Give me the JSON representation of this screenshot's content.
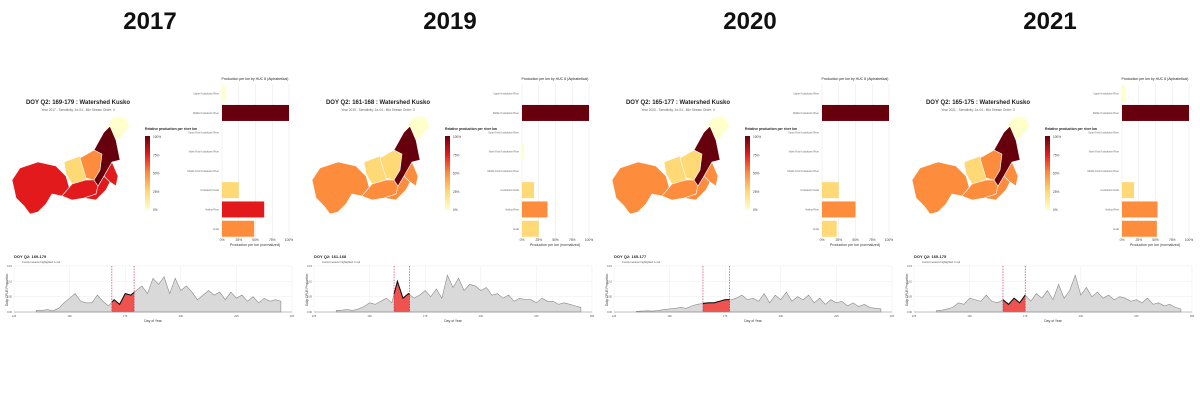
{
  "colors": {
    "scale": [
      "#ffffcc",
      "#fed976",
      "#fd8d3c",
      "#e31a1c",
      "#67000d"
    ],
    "curve_fill": "#d9d9d9",
    "highlight_fill": "#ef5350",
    "vline": "#c2185b"
  },
  "common": {
    "bar_title": "Production per km by HUC 8 (Alphabetical)",
    "bar_xlabel": "Production per km (normalized)",
    "bar_ticks": [
      "0%",
      "25%",
      "50%",
      "75%",
      "100%"
    ],
    "legend_title": "Relative production per river km",
    "legend_ticks": [
      "100%",
      "75%",
      "50%",
      "25%",
      "0%"
    ],
    "ts_subtitle": "Current season highlighted in red",
    "ts_ylabel": "Daily CPUE Proportion",
    "ts_xlabel": "Day of Year",
    "ts_yticks": [
      "0.15",
      "0.10",
      "0.05",
      "0.00"
    ],
    "ts_xticks": [
      "125",
      "150",
      "175",
      "200",
      "225",
      "250"
    ]
  },
  "chart_data": [
    {
      "type": "bar",
      "year": "2017",
      "map_title": "DOY Q2: 169-179 : Watershed Kusko",
      "map_subtitle": "Year 2017 - Sensitivity: 1e-04 - Min Stream Order: 3",
      "ts_title": "DOY Q2: 169-179",
      "categories": [
        "Upper Kuskokwim River",
        "Middle Kuskokwim River",
        "South Fork Kuskokwim River",
        "North Fork Kuskokwim River",
        "Middle Fork Kuskokwim River",
        "Kuskokwim Delta",
        "Holitna River",
        "Aniak"
      ],
      "values": [
        5,
        100,
        0,
        0,
        0,
        25,
        63,
        48
      ],
      "highlight": [
        169,
        179
      ],
      "cpue_values": [
        0.005,
        0.005,
        0.008,
        0.004,
        0.012,
        0.03,
        0.045,
        0.06,
        0.035,
        0.03,
        0.03,
        0.055,
        0.035,
        0.02,
        0.04,
        0.025,
        0.06,
        0.055,
        0.07,
        0.085,
        0.06,
        0.11,
        0.09,
        0.115,
        0.06,
        0.11,
        0.07,
        0.085,
        0.065,
        0.04,
        0.055,
        0.07,
        0.055,
        0.065,
        0.04,
        0.065,
        0.045,
        0.055,
        0.035,
        0.05,
        0.03,
        0.045,
        0.035,
        0.04,
        0.035
      ]
    },
    {
      "type": "bar",
      "year": "2019",
      "map_title": "DOY Q2: 161-168 : Watershed Kusko",
      "map_subtitle": "Year 2019 - Sensitivity: 1e-04 - Min Stream Order: 3",
      "ts_title": "DOY Q2: 161-168",
      "categories": [
        "Upper Kuskokwim River",
        "Middle Kuskokwim River",
        "South Fork Kuskokwim River",
        "North Fork Kuskokwim River",
        "Middle Fork Kuskokwim River",
        "Kuskokwim Delta",
        "Holitna River",
        "Aniak"
      ],
      "values": [
        0,
        100,
        0,
        3,
        0,
        18,
        38,
        25
      ],
      "highlight": [
        161,
        168
      ],
      "cpue_values": [
        0.005,
        0.006,
        0.008,
        0.005,
        0.01,
        0.018,
        0.03,
        0.025,
        0.035,
        0.045,
        0.03,
        0.1,
        0.045,
        0.06,
        0.045,
        0.055,
        0.07,
        0.05,
        0.075,
        0.045,
        0.12,
        0.08,
        0.11,
        0.07,
        0.09,
        0.085,
        0.07,
        0.08,
        0.055,
        0.06,
        0.045,
        0.055,
        0.035,
        0.045,
        0.04,
        0.04,
        0.03,
        0.045,
        0.035,
        0.035,
        0.025,
        0.03,
        0.025,
        0.02,
        0.015
      ]
    },
    {
      "type": "bar",
      "year": "2020",
      "map_title": "DOY Q2: 165-177 : Watershed Kusko",
      "map_subtitle": "Year 2020 - Sensitivity: 1e-04 - Min Stream Order: 3",
      "ts_title": "DOY Q2: 165-177",
      "categories": [
        "Upper Kuskokwim River",
        "Middle Kuskokwim River",
        "South Fork Kuskokwim River",
        "North Fork Kuskokwim River",
        "Middle Fork Kuskokwim River",
        "Kuskokwim Delta",
        "Holitna River",
        "Aniak"
      ],
      "values": [
        0,
        100,
        0,
        0,
        0,
        25,
        50,
        22
      ],
      "highlight": [
        165,
        177
      ],
      "cpue_values": [
        0.002,
        0.003,
        0.004,
        0.003,
        0.005,
        0.008,
        0.01,
        0.012,
        0.015,
        0.012,
        0.02,
        0.025,
        0.028,
        0.03,
        0.03,
        0.035,
        0.04,
        0.04,
        0.045,
        0.055,
        0.04,
        0.045,
        0.035,
        0.06,
        0.03,
        0.055,
        0.04,
        0.065,
        0.035,
        0.05,
        0.04,
        0.055,
        0.03,
        0.045,
        0.025,
        0.04,
        0.03,
        0.035,
        0.02,
        0.03,
        0.018,
        0.025,
        0.015,
        0.012,
        0.01
      ]
    },
    {
      "type": "bar",
      "year": "2021",
      "map_title": "DOY Q2: 165-175 : Watershed Kusko",
      "map_subtitle": "Year 2021 - Sensitivity: 1e-04 - Min Stream Order: 3",
      "ts_title": "DOY Q2: 165-175",
      "categories": [
        "Upper Kuskokwim River",
        "Middle Kuskokwim River",
        "South Fork Kuskokwim River",
        "North Fork Kuskokwim River",
        "Middle Fork Kuskokwim River",
        "Kuskokwim Delta",
        "Holitna River",
        "Aniak"
      ],
      "values": [
        5,
        100,
        0,
        0,
        0,
        18,
        53,
        52
      ],
      "highlight": [
        165,
        175
      ],
      "cpue_values": [
        0.004,
        0.006,
        0.01,
        0.015,
        0.03,
        0.025,
        0.045,
        0.04,
        0.035,
        0.055,
        0.035,
        0.03,
        0.04,
        0.025,
        0.045,
        0.03,
        0.055,
        0.035,
        0.06,
        0.045,
        0.07,
        0.04,
        0.09,
        0.045,
        0.07,
        0.12,
        0.055,
        0.08,
        0.05,
        0.065,
        0.045,
        0.055,
        0.04,
        0.05,
        0.045,
        0.035,
        0.04,
        0.03,
        0.045,
        0.025,
        0.03,
        0.02,
        0.025,
        0.015,
        0.01
      ]
    }
  ]
}
